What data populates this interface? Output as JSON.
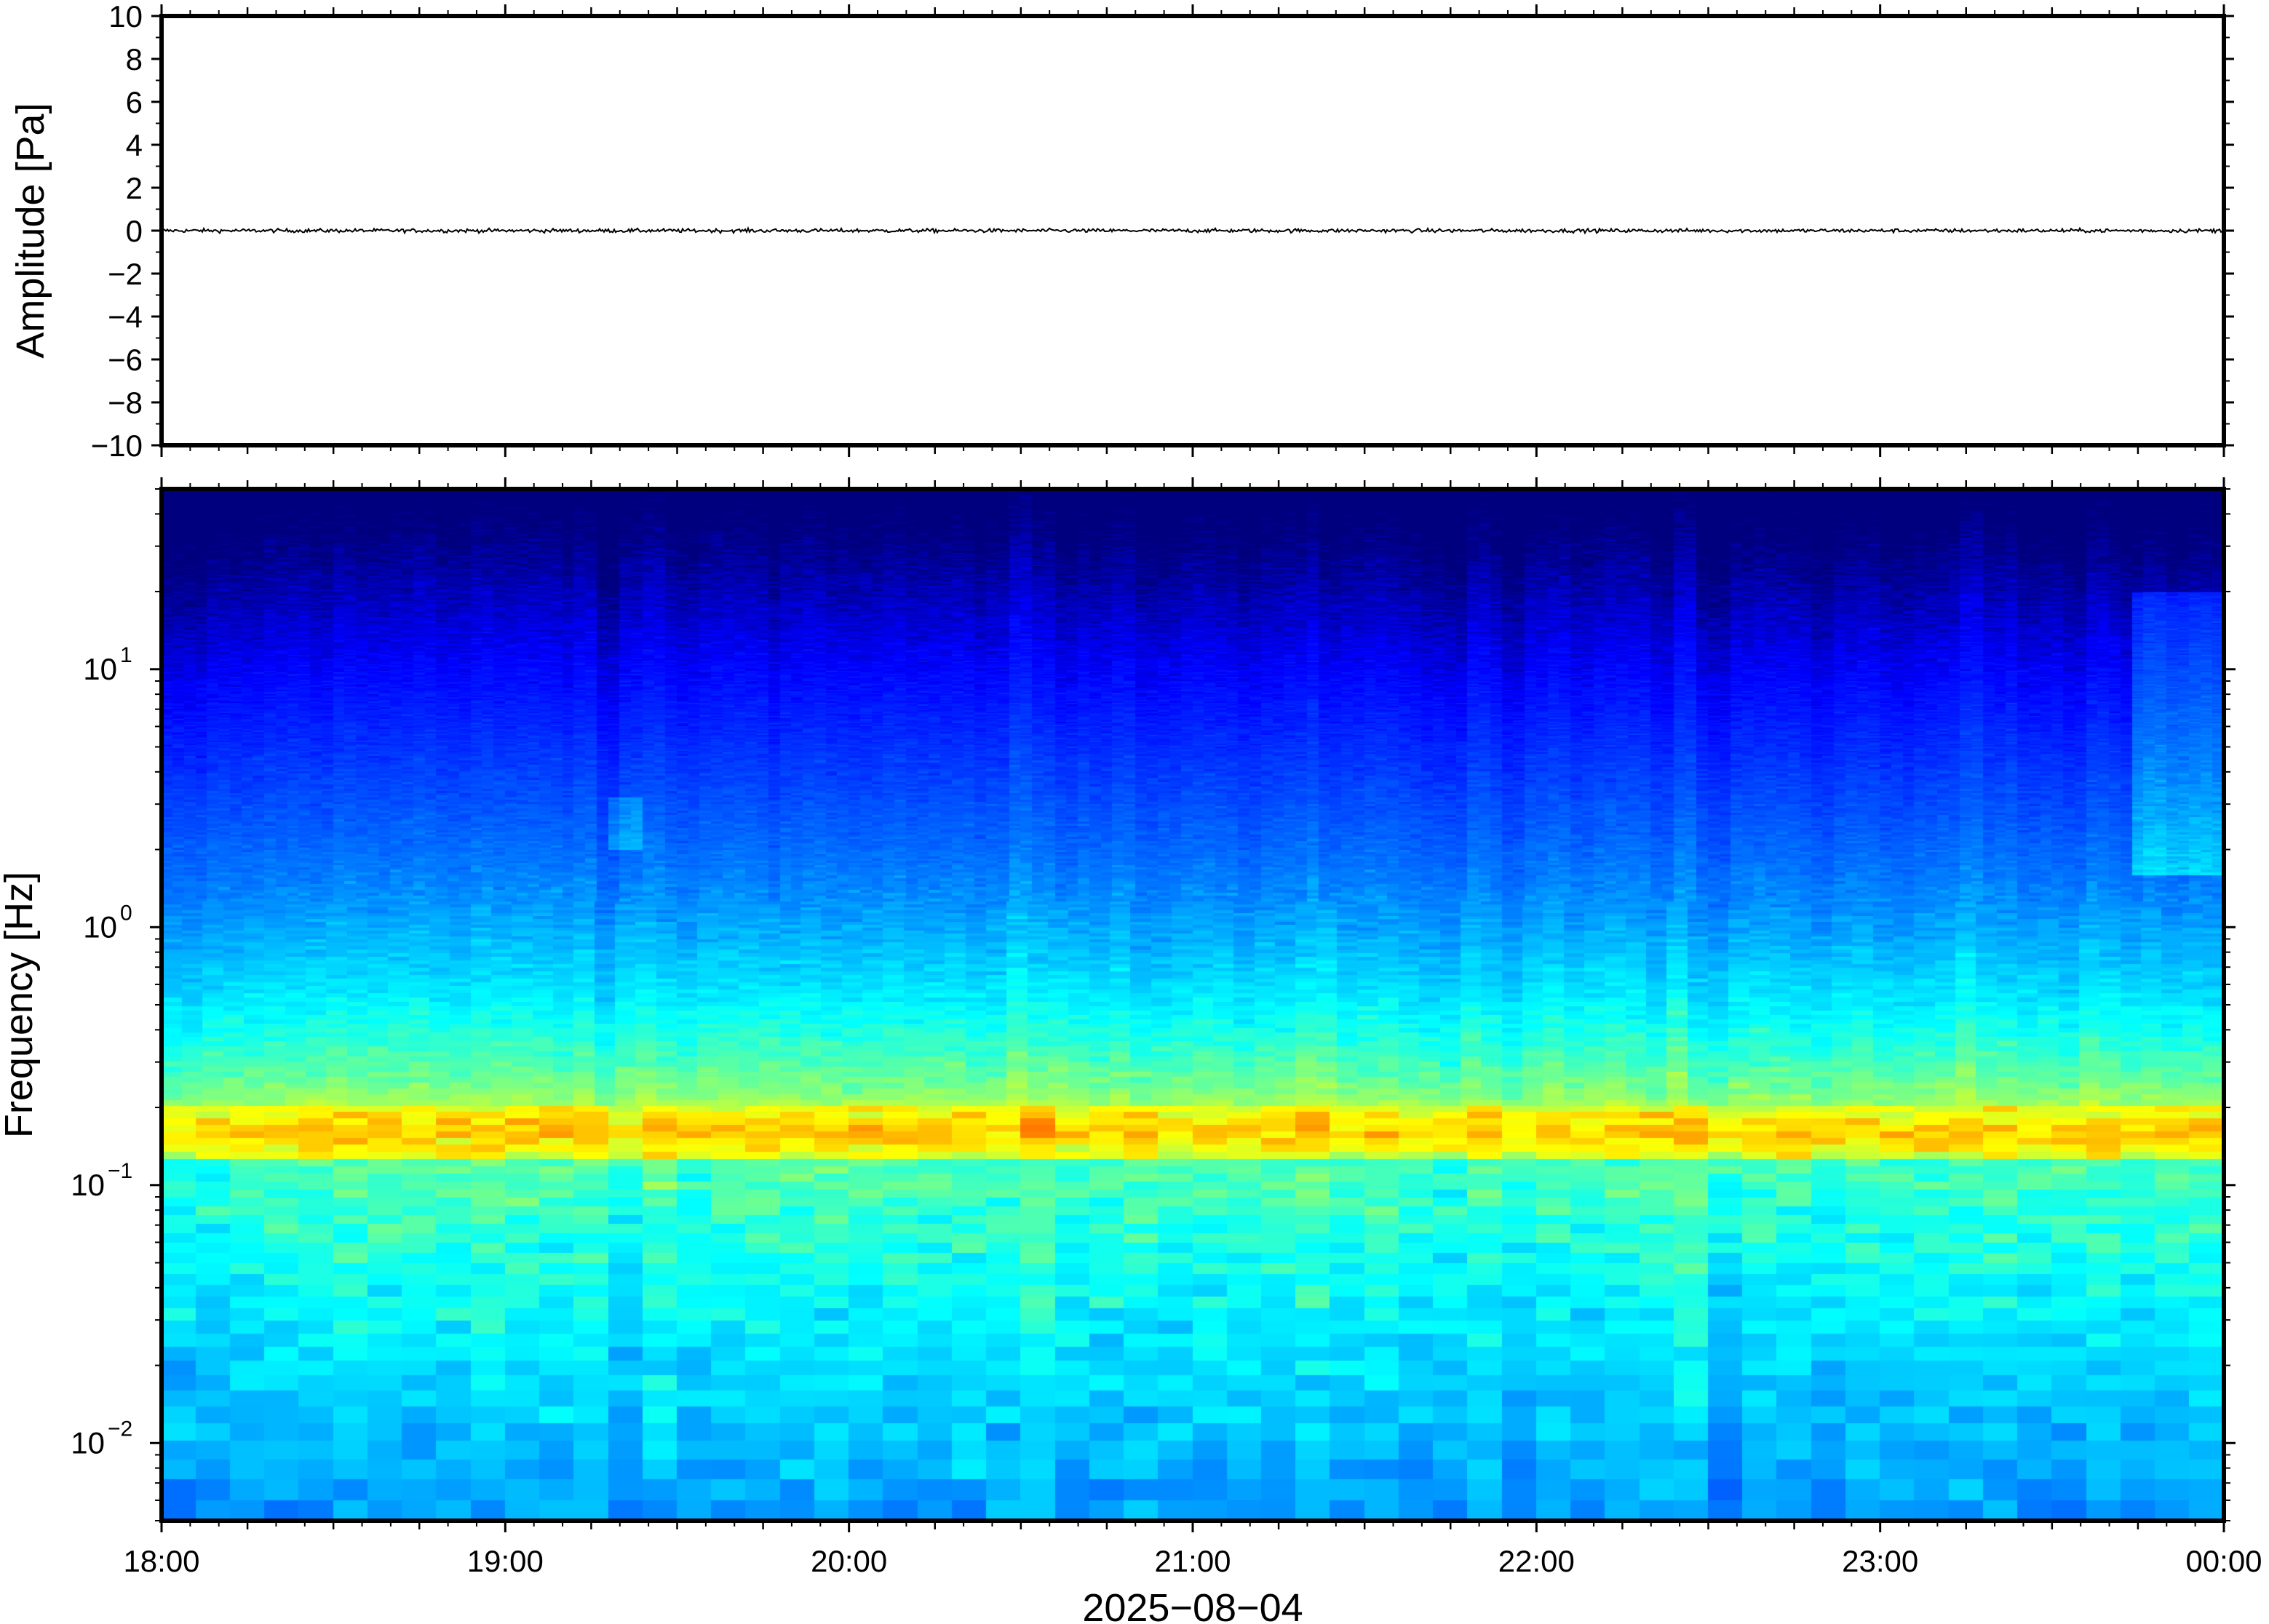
{
  "chart_data": [
    {
      "type": "line",
      "panel": "waveform",
      "ylabel": "Amplitude [Pa]",
      "ylim": [
        -10,
        10
      ],
      "yticks": [
        "10",
        "8",
        "6",
        "4",
        "2",
        "0",
        "−2",
        "−4",
        "−6",
        "−8",
        "−10"
      ],
      "ytick_values": [
        10,
        8,
        6,
        4,
        2,
        0,
        -2,
        -4,
        -6,
        -8,
        -10
      ],
      "series": [
        {
          "trace_level": 0.0,
          "noise_amplitude": 0.15,
          "color": "#000000"
        }
      ]
    },
    {
      "type": "heatmap",
      "panel": "spectrogram",
      "ylabel": "Frequency [Hz]",
      "yscale": "log",
      "ylim": [
        0.005,
        50
      ],
      "yticks": [
        {
          "base": "10",
          "exp": "1",
          "value": 10
        },
        {
          "base": "10",
          "exp": "0",
          "value": 1
        },
        {
          "base": "10",
          "exp": "−1",
          "value": 0.1
        },
        {
          "base": "10",
          "exp": "−2",
          "value": 0.01
        }
      ],
      "xlabel": "2025−08−04",
      "xticks": [
        "18:00",
        "19:00",
        "20:00",
        "21:00",
        "22:00",
        "23:00",
        "00:00"
      ],
      "xlim_hours": [
        18,
        24
      ],
      "colormap": "jet",
      "peak_band_hz": [
        0.13,
        0.2
      ],
      "colormap_stops": [
        "#00007f",
        "#0000ff",
        "#007fff",
        "#00ffff",
        "#7fff7f",
        "#ffff00",
        "#ff7f00",
        "#ff0000"
      ]
    }
  ]
}
